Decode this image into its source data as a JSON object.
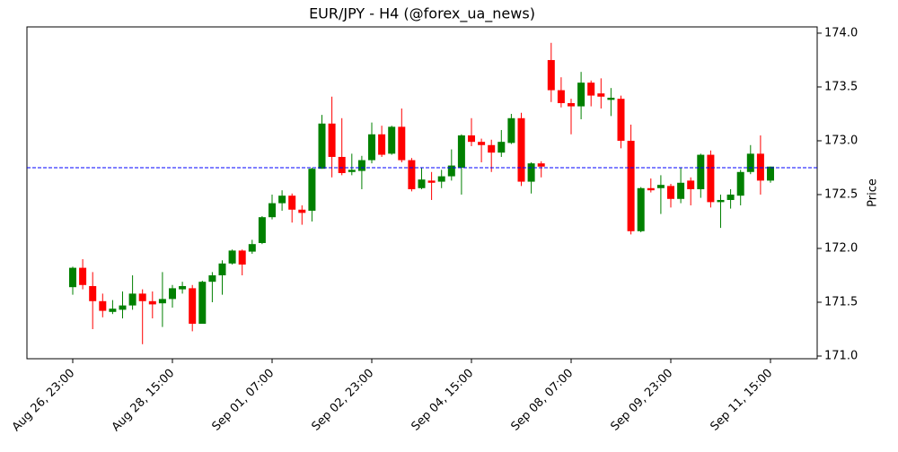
{
  "chart_data": {
    "type": "candlestick",
    "title": "EUR/JPY - H4 (@forex_ua_news)",
    "y_label": "Price",
    "y_axis_side": "right",
    "up_color": "green",
    "down_color": "red",
    "categories": [
      "Aug 26, 23:00",
      null,
      null,
      null,
      null,
      null,
      null,
      null,
      null,
      null,
      "Aug 28, 15:00",
      null,
      null,
      null,
      null,
      null,
      null,
      null,
      null,
      null,
      "Sep 01, 07:00",
      null,
      null,
      null,
      null,
      null,
      null,
      null,
      null,
      null,
      "Sep 02, 23:00",
      null,
      null,
      null,
      null,
      null,
      null,
      null,
      null,
      null,
      "Sep 04, 15:00",
      null,
      null,
      null,
      null,
      null,
      null,
      null,
      null,
      null,
      "Sep 08, 07:00",
      null,
      null,
      null,
      null,
      null,
      null,
      null,
      null,
      null,
      "Sep 09, 23:00",
      null,
      null,
      null,
      null,
      null,
      null,
      null,
      null,
      null,
      "Sep 11, 15:00"
    ],
    "open": [
      171.64,
      171.82,
      171.65,
      171.51,
      171.41,
      171.43,
      171.47,
      171.58,
      171.51,
      171.49,
      171.53,
      171.62,
      171.63,
      171.3,
      171.69,
      171.75,
      171.86,
      171.98,
      171.97,
      172.05,
      172.29,
      172.42,
      172.49,
      172.36,
      172.35,
      172.74,
      173.16,
      172.85,
      172.71,
      172.72,
      172.82,
      173.06,
      172.88,
      173.13,
      172.82,
      172.56,
      172.63,
      172.62,
      172.67,
      172.75,
      173.05,
      172.99,
      172.96,
      172.89,
      172.98,
      173.21,
      172.62,
      172.79,
      173.75,
      173.47,
      173.35,
      173.32,
      173.54,
      173.44,
      173.38,
      173.39,
      173.0,
      172.16,
      172.56,
      172.56,
      172.58,
      172.46,
      172.63,
      172.55,
      172.87,
      172.43,
      172.45,
      172.49,
      172.71,
      172.88,
      172.63
    ],
    "high": [
      171.83,
      171.9,
      171.78,
      171.58,
      171.52,
      171.6,
      171.75,
      171.62,
      171.6,
      171.78,
      171.66,
      171.69,
      171.66,
      171.7,
      171.78,
      171.89,
      171.99,
      171.99,
      172.08,
      172.3,
      172.5,
      172.54,
      172.51,
      172.4,
      172.75,
      173.24,
      173.41,
      173.21,
      172.88,
      172.86,
      173.17,
      173.14,
      173.14,
      173.3,
      172.84,
      172.75,
      172.71,
      172.73,
      172.92,
      173.06,
      173.21,
      173.02,
      173.01,
      173.1,
      173.25,
      173.26,
      172.8,
      172.81,
      173.91,
      173.59,
      173.39,
      173.64,
      173.56,
      173.58,
      173.49,
      173.42,
      173.15,
      172.57,
      172.65,
      172.68,
      172.6,
      172.75,
      172.66,
      172.88,
      172.91,
      172.5,
      172.55,
      172.73,
      172.96,
      173.05,
      172.76
    ],
    "low": [
      171.57,
      171.62,
      171.25,
      171.36,
      171.39,
      171.35,
      171.43,
      171.11,
      171.35,
      171.27,
      171.45,
      171.58,
      171.23,
      171.3,
      171.5,
      171.57,
      171.85,
      171.75,
      171.95,
      172.04,
      172.27,
      172.35,
      172.24,
      172.22,
      172.25,
      172.74,
      172.66,
      172.68,
      172.68,
      172.55,
      172.79,
      172.85,
      172.87,
      172.8,
      172.53,
      172.55,
      172.45,
      172.56,
      172.63,
      172.5,
      172.95,
      172.8,
      172.71,
      172.85,
      172.97,
      172.58,
      172.51,
      172.66,
      173.36,
      173.31,
      173.06,
      173.2,
      173.32,
      173.3,
      173.23,
      172.93,
      172.13,
      172.15,
      172.52,
      172.32,
      172.38,
      172.42,
      172.4,
      172.47,
      172.38,
      172.19,
      172.37,
      172.4,
      172.69,
      172.5,
      172.61
    ],
    "close": [
      171.82,
      171.66,
      171.51,
      171.42,
      171.44,
      171.47,
      171.58,
      171.51,
      171.48,
      171.53,
      171.63,
      171.65,
      171.3,
      171.69,
      171.75,
      171.86,
      171.98,
      171.85,
      172.04,
      172.29,
      172.42,
      172.49,
      172.36,
      172.33,
      172.74,
      173.16,
      172.85,
      172.7,
      172.73,
      172.82,
      173.06,
      172.87,
      173.13,
      172.82,
      172.55,
      172.64,
      172.61,
      172.67,
      172.77,
      173.05,
      172.99,
      172.96,
      172.89,
      172.99,
      173.21,
      172.62,
      172.79,
      172.76,
      173.47,
      173.35,
      173.32,
      173.54,
      173.42,
      173.41,
      173.4,
      173.0,
      172.16,
      172.56,
      172.54,
      172.59,
      172.46,
      172.61,
      172.55,
      172.87,
      172.43,
      172.45,
      172.5,
      172.71,
      172.88,
      172.63,
      172.76
    ],
    "hline": {
      "value": 172.75,
      "color": "blue"
    },
    "ylim": [
      170.975,
      174.058
    ],
    "yticks": [
      {
        "value": 171,
        "label": "171.0"
      },
      171.5,
      {
        "value": 172,
        "label": "172.0"
      },
      172.5,
      {
        "value": 173,
        "label": "173.0"
      },
      173.5,
      {
        "value": 174,
        "label": "174.0"
      }
    ]
  }
}
